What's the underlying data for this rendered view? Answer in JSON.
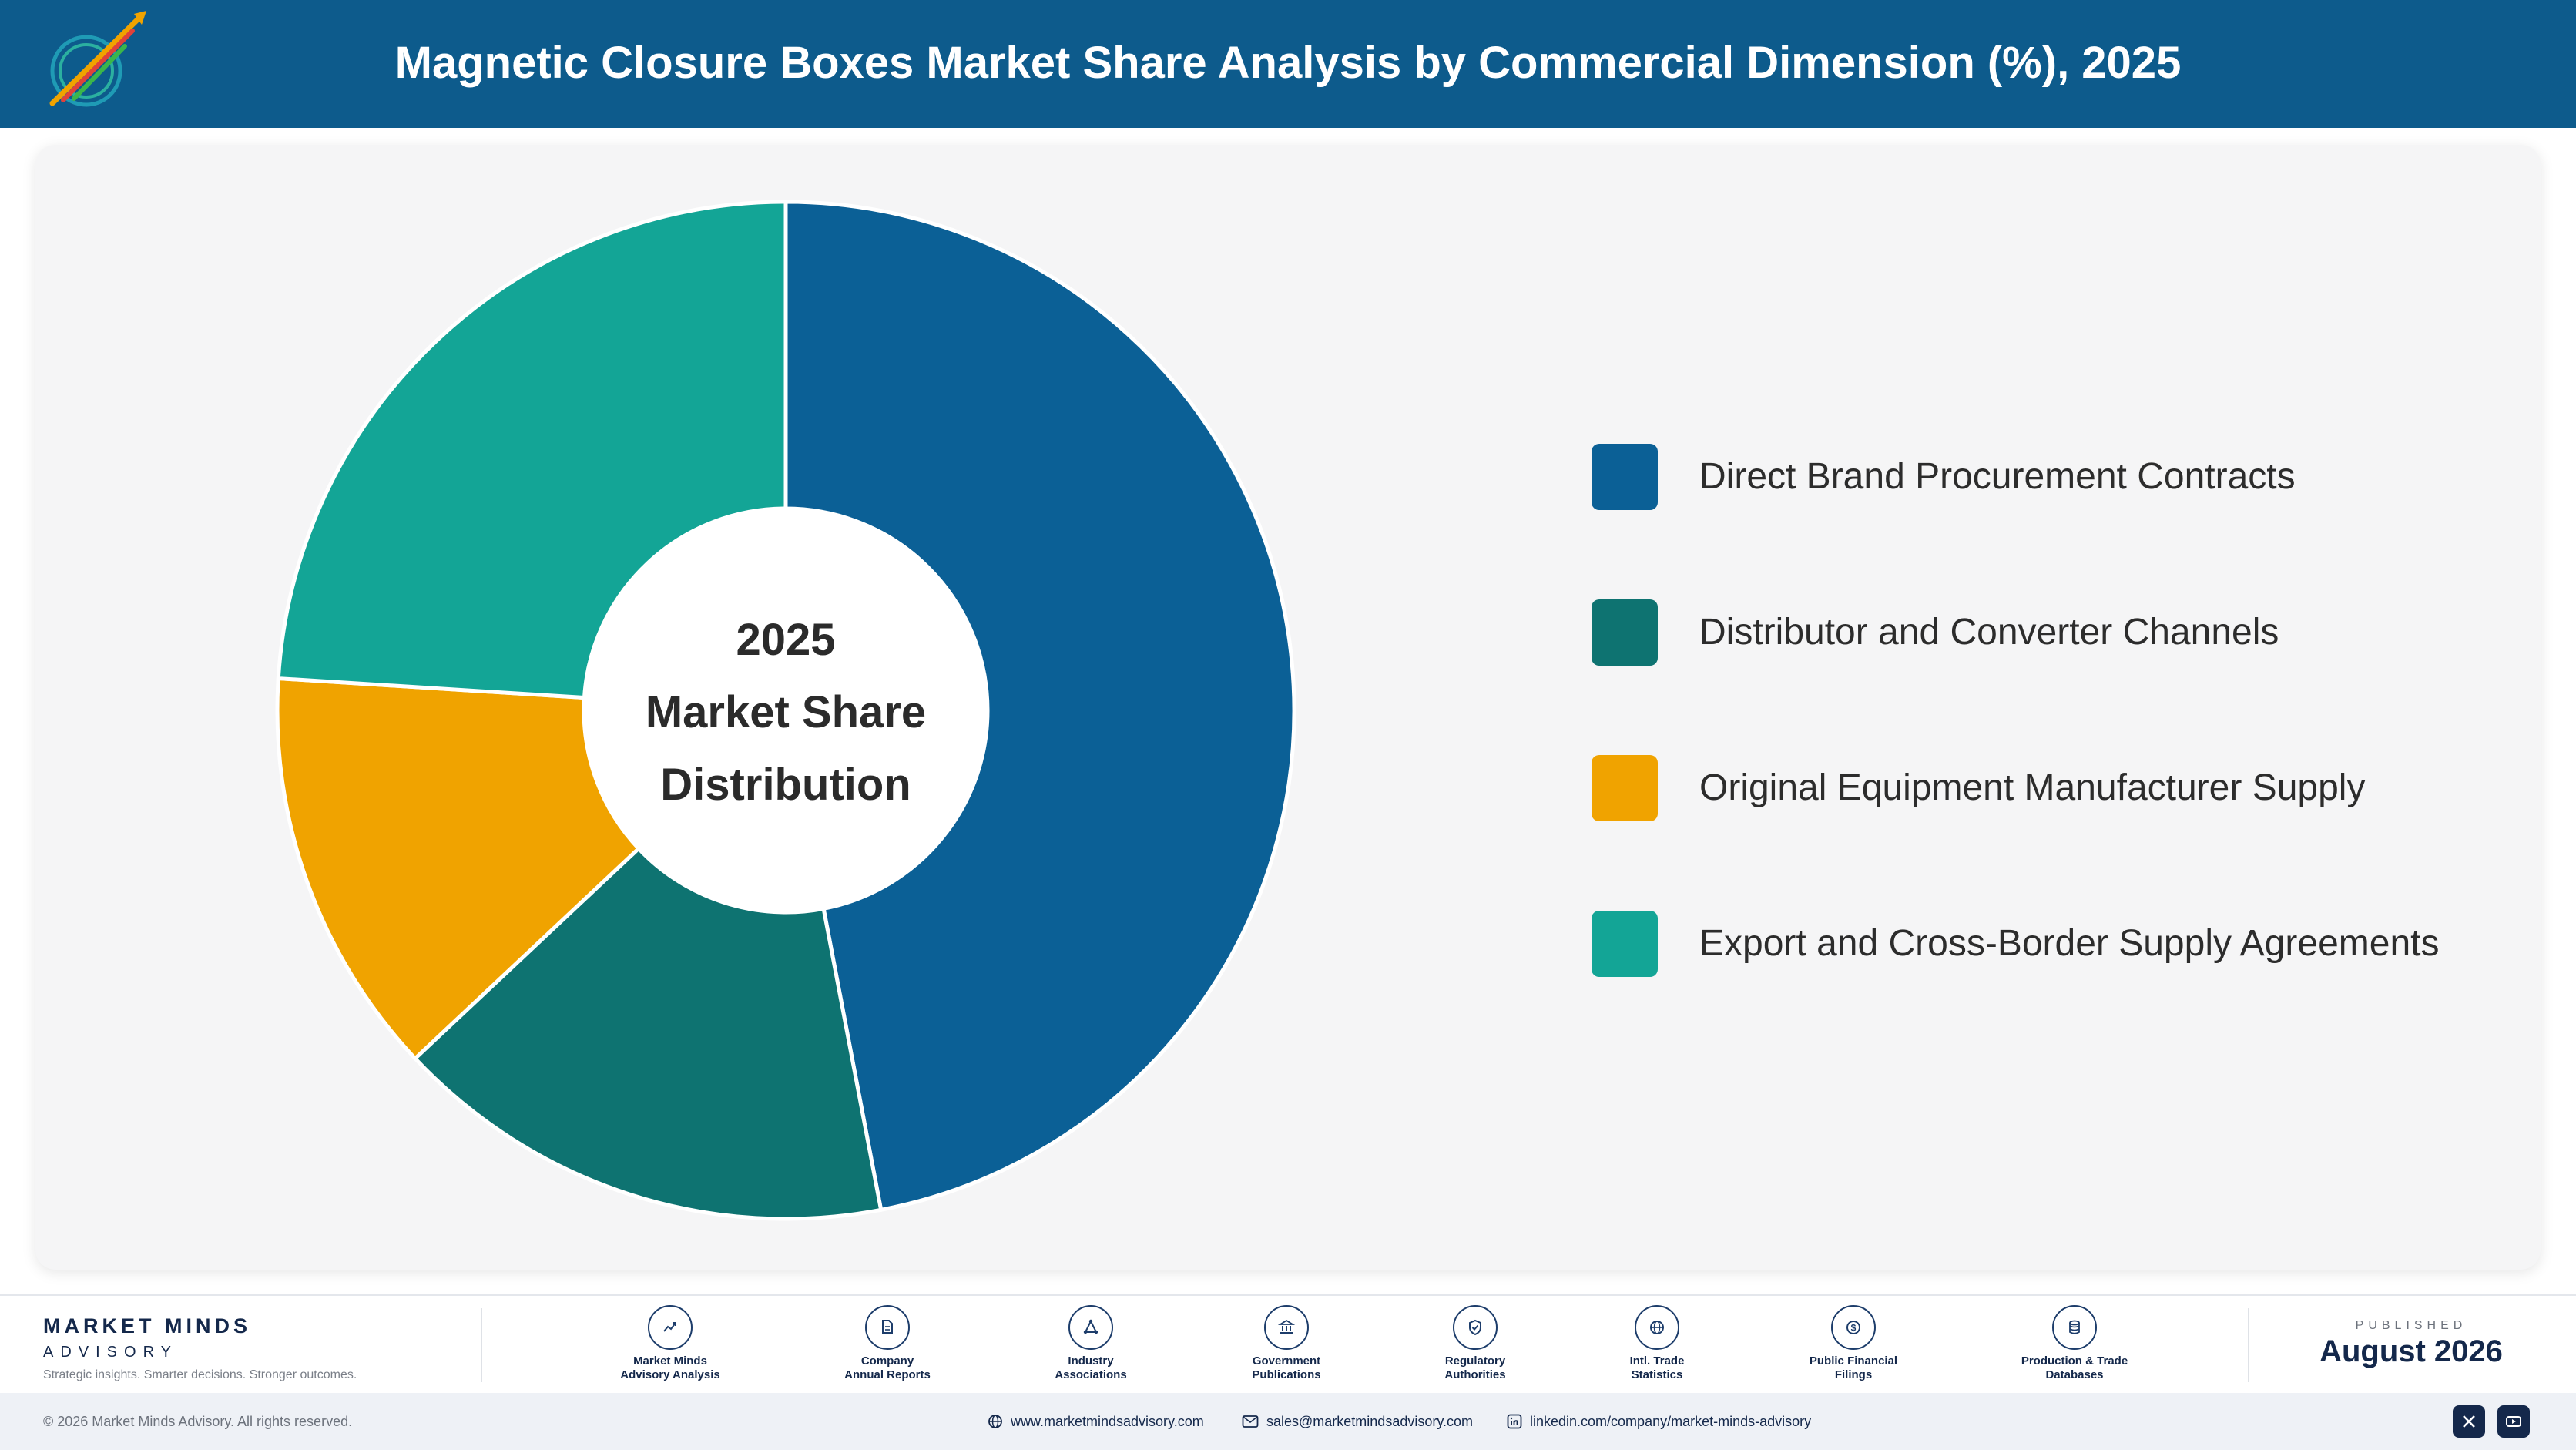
{
  "header": {
    "title": "Magnetic Closure Boxes Market Share Analysis by Commercial Dimension (%), 2025"
  },
  "chart_data": {
    "type": "pie",
    "center_text": [
      "2025",
      "Market Share",
      "Distribution"
    ],
    "categories": [
      "Direct Brand Procurement Contracts",
      "Distributor and Converter Channels",
      "Original Equipment Manufacturer Supply",
      "Export and Cross-Border Supply Agreements"
    ],
    "values": [
      47,
      16,
      13,
      24
    ],
    "colors": [
      "#0b6096",
      "#0e7371",
      "#f0a300",
      "#13a596"
    ],
    "legend_position": "right"
  },
  "footer": {
    "brand_name": "MARKET MINDS",
    "brand_sub": "ADVISORY",
    "brand_tagline": "Strategic insights. Smarter decisions. Stronger outcomes.",
    "sources": [
      {
        "icon": "trend-chart-icon",
        "label_line1": "Market Minds",
        "label_line2": "Advisory Analysis"
      },
      {
        "icon": "document-icon",
        "label_line1": "Company",
        "label_line2": "Annual Reports"
      },
      {
        "icon": "network-icon",
        "label_line1": "Industry",
        "label_line2": "Associations"
      },
      {
        "icon": "government-building-icon",
        "label_line1": "Government",
        "label_line2": "Publications"
      },
      {
        "icon": "shield-check-icon",
        "label_line1": "Regulatory",
        "label_line2": "Authorities"
      },
      {
        "icon": "globe-icon",
        "label_line1": "Intl. Trade",
        "label_line2": "Statistics"
      },
      {
        "icon": "dollar-coin-icon",
        "label_line1": "Public Financial",
        "label_line2": "Filings"
      },
      {
        "icon": "database-icon",
        "label_line1": "Production & Trade",
        "label_line2": "Databases"
      }
    ],
    "published_label": "PUBLISHED",
    "published_date": "August 2026",
    "copyright": "© 2026 Market Minds Advisory. All rights reserved.",
    "website": "www.marketmindsadvisory.com",
    "email": "sales@marketmindsadvisory.com",
    "linkedin": "linkedin.com/company/market-minds-advisory"
  }
}
